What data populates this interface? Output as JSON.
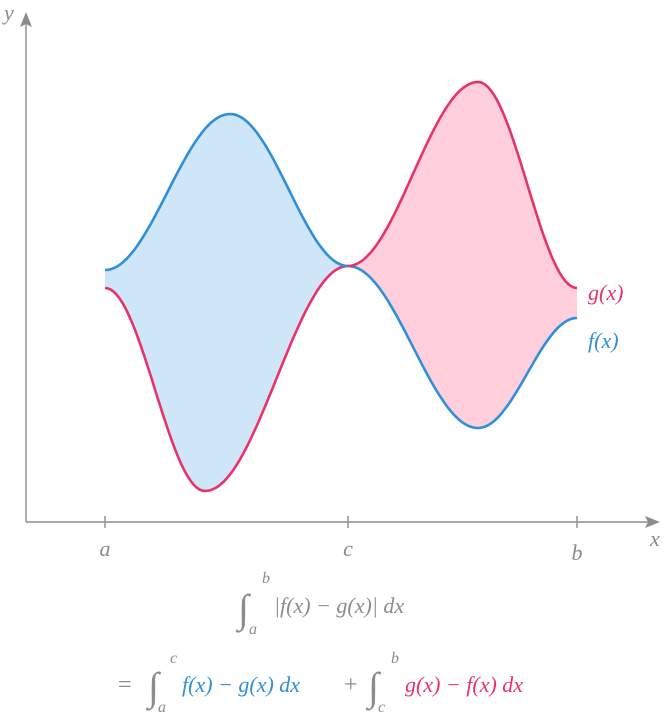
{
  "axes": {
    "x_label": "x",
    "y_label": "y",
    "tick_labels": [
      "a",
      "c",
      "b"
    ]
  },
  "curves": {
    "f": {
      "label": "f(x)",
      "color": "#2f8fd8",
      "fill": "#cfe5f8"
    },
    "g": {
      "label": "g(x)",
      "color": "#e8336a",
      "fill": "#ffd0dc"
    }
  },
  "axis_color": "#8c8c8c",
  "formula": {
    "line1": {
      "integral_lower": "a",
      "integral_upper": "b",
      "integrand": "|f(x) − g(x)| dx"
    },
    "line2": {
      "equals": "=",
      "first": {
        "lower": "a",
        "upper": "c",
        "integrand": "f(x) − g(x) dx"
      },
      "plus": "+",
      "second": {
        "lower": "c",
        "upper": "b",
        "integrand": "g(x) − f(x) dx"
      }
    }
  }
}
